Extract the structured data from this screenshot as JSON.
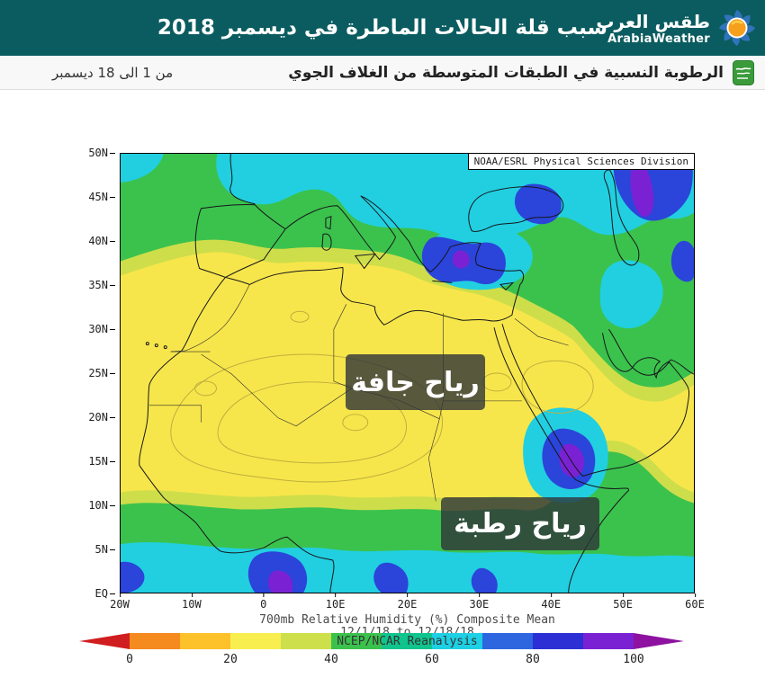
{
  "header": {
    "bg_color": "#0b5c60",
    "title": "سبب قلة الحالات الماطرة في ديسمبر 2018",
    "logo_ar": "طقس العرب",
    "logo_en": "ArabiaWeather"
  },
  "subheader": {
    "title": "الرطوبة النسبية في الطبقات المتوسطة من الغلاف الجوي",
    "date_range": "من 1 الى 18 ديسمبر"
  },
  "map": {
    "source_label": "NOAA/ESRL Physical Sciences Division",
    "dry_label": "رياح جافة",
    "wet_label": "رياح رطبة",
    "lat_ticks": [
      "50N",
      "45N",
      "40N",
      "35N",
      "30N",
      "25N",
      "20N",
      "15N",
      "10N",
      "5N",
      "EQ"
    ],
    "lon_ticks": [
      "20W",
      "10W",
      "0",
      "10E",
      "20E",
      "30E",
      "40E",
      "50E",
      "60E"
    ]
  },
  "caption": {
    "line1": "700mb Relative Humidity (%) Composite Mean",
    "line2": "12/1/18 to 12/18/18",
    "line3": "NCEP/NCAR Reanalysis"
  },
  "colorbar": {
    "unit": "%",
    "labels": [
      "0",
      "20",
      "40",
      "60",
      "80",
      "100"
    ],
    "left_arrow_color": "#cf1d20",
    "right_arrow_color": "#8d12a0",
    "segment_colors": [
      "#f58a1f",
      "#fdc12a",
      "#f9ee4f",
      "#cde04b",
      "#3bc24d",
      "#10c48e",
      "#1ed0e4",
      "#2e66e0",
      "#2b2fd4",
      "#7a22d3"
    ]
  }
}
